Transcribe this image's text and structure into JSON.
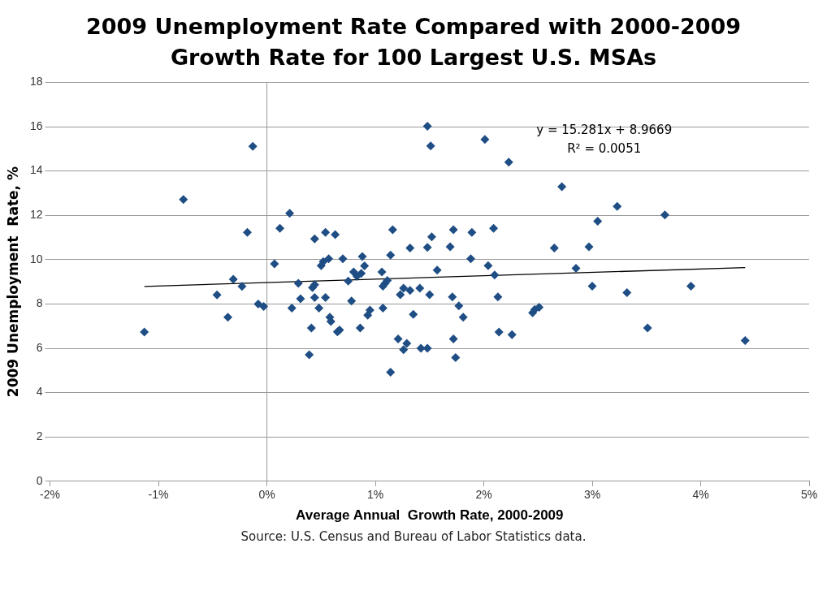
{
  "chart_data": {
    "type": "scatter",
    "title": "2009 Unemployment Rate Compared with 2000-2009 Growth Rate for 100 Largest U.S. MSAs",
    "xlabel": "Average Annual  Growth Rate, 2000-2009",
    "ylabel": "2009 Unemployment  Rate, %",
    "xlim": [
      -2,
      5
    ],
    "xticks": [
      {
        "value": -2,
        "label": "-2%"
      },
      {
        "value": -1,
        "label": "-1%"
      },
      {
        "value": 0,
        "label": "0%"
      },
      {
        "value": 1,
        "label": "1%"
      },
      {
        "value": 2,
        "label": "2%"
      },
      {
        "value": 3,
        "label": "3%"
      },
      {
        "value": 4,
        "label": "4%"
      },
      {
        "value": 5,
        "label": "5%"
      }
    ],
    "ylim": [
      0,
      18
    ],
    "yticks": [
      0,
      2,
      4,
      6,
      8,
      10,
      12,
      14,
      16,
      18
    ],
    "grid": "y",
    "ref_lines": [
      {
        "axis": "x",
        "value": 0,
        "color": "#999999"
      }
    ],
    "legend": false,
    "marker": "diamond",
    "annotations": [
      "y = 15.281x + 8.9669",
      "R² = 0.0051",
      "Source: U.S. Census and Bureau of Labor Statistics data."
    ],
    "series": [
      {
        "color": "#1f4e85",
        "x": [
          -1.13,
          -0.77,
          -0.13,
          -0.18,
          -0.46,
          -0.36,
          -0.31,
          -0.23,
          -0.08,
          -0.03,
          0.07,
          0.12,
          0.21,
          0.23,
          0.29,
          0.31,
          0.41,
          0.39,
          0.44,
          0.42,
          0.44,
          0.44,
          0.48,
          0.5,
          0.52,
          0.54,
          0.54,
          0.57,
          0.58,
          0.59,
          0.63,
          0.65,
          0.67,
          0.7,
          0.75,
          0.78,
          0.8,
          0.83,
          0.86,
          0.87,
          0.88,
          0.9,
          0.93,
          0.95,
          1.06,
          1.07,
          1.09,
          1.11,
          1.07,
          1.14,
          1.16,
          1.14,
          1.21,
          1.23,
          1.26,
          1.26,
          1.29,
          1.32,
          1.32,
          1.35,
          1.41,
          1.42,
          1.48,
          1.48,
          1.51,
          1.48,
          1.5,
          1.52,
          1.57,
          1.69,
          1.71,
          1.72,
          1.72,
          1.74,
          1.77,
          1.81,
          1.88,
          1.89,
          2.01,
          2.04,
          2.09,
          2.1,
          2.13,
          2.14,
          2.23,
          2.26,
          2.45,
          2.47,
          2.51,
          2.65,
          2.72,
          2.85,
          2.97,
          3.0,
          3.05,
          3.23,
          3.32,
          3.51,
          3.67,
          3.91,
          4.41
        ],
        "values": [
          6.73,
          12.71,
          15.11,
          11.23,
          8.41,
          7.4,
          9.11,
          8.79,
          8.0,
          7.89,
          9.81,
          11.41,
          12.09,
          7.81,
          8.93,
          8.23,
          6.92,
          5.71,
          10.94,
          8.74,
          8.87,
          8.29,
          7.81,
          9.73,
          9.91,
          11.23,
          8.29,
          10.04,
          7.4,
          7.21,
          11.13,
          6.74,
          6.82,
          10.04,
          9.03,
          8.13,
          9.44,
          9.25,
          6.92,
          9.38,
          10.14,
          9.72,
          7.49,
          7.72,
          9.44,
          8.8,
          8.93,
          9.06,
          7.81,
          10.2,
          11.35,
          4.92,
          6.42,
          8.42,
          8.71,
          5.94,
          6.22,
          10.52,
          8.61,
          7.53,
          8.71,
          6.0,
          6.0,
          16.02,
          15.13,
          10.55,
          8.42,
          11.03,
          9.53,
          10.58,
          8.32,
          11.35,
          6.42,
          5.58,
          7.91,
          7.4,
          10.04,
          11.23,
          15.42,
          9.73,
          11.41,
          9.31,
          8.32,
          6.73,
          14.4,
          6.61,
          7.6,
          7.75,
          7.85,
          10.52,
          13.29,
          9.61,
          10.58,
          8.8,
          11.73,
          12.4,
          8.51,
          6.92,
          12.02,
          8.8,
          6.35
        ]
      },
      {
        "type": "line",
        "color": "#000000",
        "marker": "none",
        "x": [
          -1.13,
          4.41
        ],
        "values": [
          8.79,
          9.64
        ]
      }
    ]
  }
}
